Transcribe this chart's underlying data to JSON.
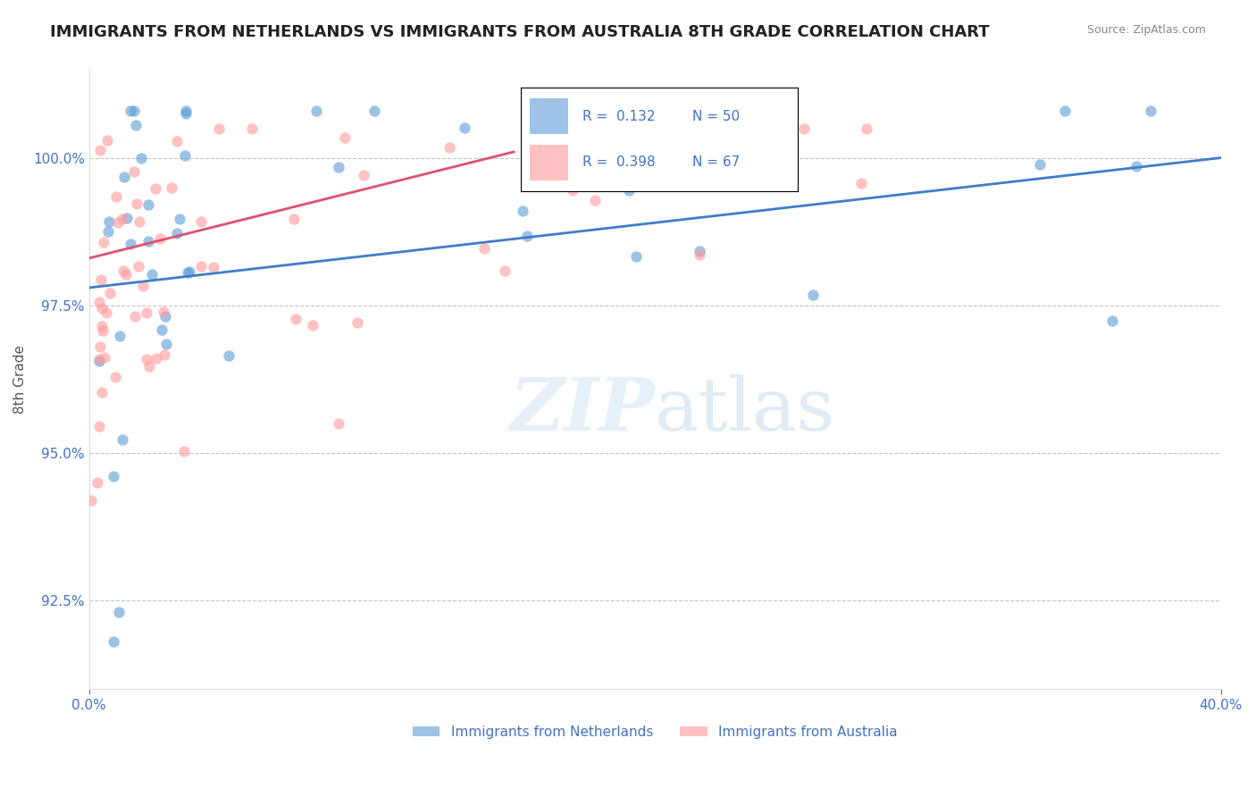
{
  "title": "IMMIGRANTS FROM NETHERLANDS VS IMMIGRANTS FROM AUSTRALIA 8TH GRADE CORRELATION CHART",
  "source": "Source: ZipAtlas.com",
  "ylabel": "8th Grade",
  "xlim": [
    0.0,
    40.0
  ],
  "ylim": [
    91.0,
    101.5
  ],
  "yticks": [
    92.5,
    95.0,
    97.5,
    100.0
  ],
  "ytick_labels": [
    "92.5%",
    "95.0%",
    "97.5%",
    "100.0%"
  ],
  "legend_r1": "R =  0.132",
  "legend_n1": "N = 50",
  "legend_r2": "R =  0.398",
  "legend_n2": "N = 67",
  "legend_label1": "Immigrants from Netherlands",
  "legend_label2": "Immigrants from Australia",
  "color_blue": "#5B9BD5",
  "color_pink": "#FF9999",
  "color_blue_line": "#3F7DC8",
  "color_pink_line": "#E05070",
  "color_text_blue": "#4472C4",
  "blue_trend": [
    0,
    40,
    97.8,
    100.0
  ],
  "pink_trend": [
    0,
    15,
    98.3,
    100.1
  ]
}
